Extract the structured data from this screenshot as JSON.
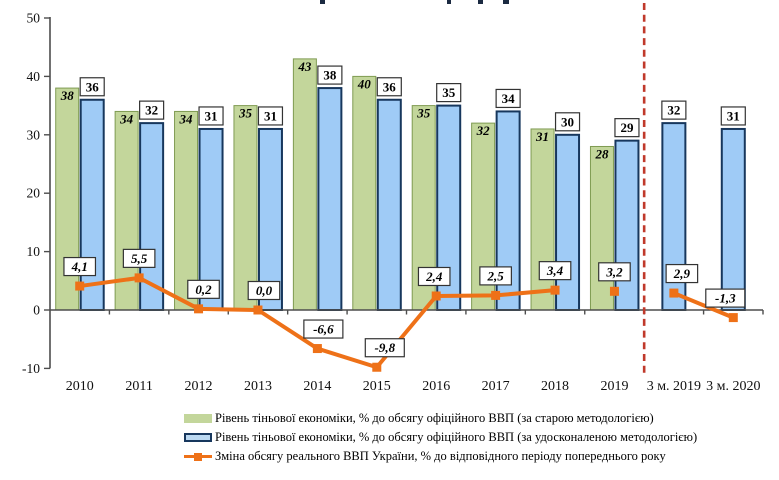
{
  "chart_data": {
    "type": "bar+line",
    "categories": [
      "2010",
      "2011",
      "2012",
      "2013",
      "2014",
      "2015",
      "2016",
      "2017",
      "2018",
      "2019",
      "3 м. 2019",
      "3 м. 2020"
    ],
    "ylim": [
      -10,
      50
    ],
    "yticks": [
      -10,
      0,
      10,
      20,
      30,
      40,
      50
    ],
    "grid": "off",
    "legend_position": "bottom",
    "series": [
      {
        "name": "Рівень тіньової економіки, % до обсягу офіційного ВВП (за старою методологією)",
        "type": "bar",
        "color": "#c3d69b",
        "border_color": "#7f9b52",
        "values": [
          38,
          34,
          34,
          35,
          43,
          40,
          35,
          32,
          31,
          28,
          null,
          null
        ],
        "value_labels": [
          "38",
          "34",
          "34",
          "35",
          "43",
          "40",
          "35",
          "32",
          "31",
          "28",
          "",
          ""
        ]
      },
      {
        "name": "Рівень тіньової економіки, % до обсягу офіційного ВВП (за удосконаленою методологією)",
        "type": "bar",
        "color": "#9fcbf6",
        "border_color": "#17375d",
        "values": [
          36,
          32,
          31,
          31,
          38,
          36,
          35,
          34,
          30,
          29,
          32,
          31
        ],
        "value_labels": [
          "36",
          "32",
          "31",
          "31",
          "38",
          "36",
          "35",
          "34",
          "30",
          "29",
          "32",
          "31"
        ]
      },
      {
        "name": "Зміна обсягу реального ВВП України, % до відповідного періоду попереднього року",
        "type": "line",
        "color": "#ee7118",
        "values": [
          4.1,
          5.5,
          0.2,
          0.0,
          -6.6,
          -9.8,
          2.4,
          2.5,
          3.4,
          3.2,
          2.9,
          -1.3
        ],
        "value_labels": [
          "4,1",
          "5,5",
          "0,2",
          "0,0",
          "-6,6",
          "-9,8",
          "2,4",
          "2,5",
          "3,4",
          "3,2",
          "2,9",
          "-1,3"
        ],
        "segments": [
          [
            0,
            8
          ],
          [
            10,
            11
          ]
        ],
        "isolated_points": [
          9
        ]
      }
    ],
    "separator": {
      "after_category": "2019",
      "color": "#c0392b",
      "style": "dashed"
    },
    "colors": {
      "axis": "#4d4d4d",
      "label_box_bg": "#ffffff",
      "label_box_border": "#333333"
    }
  }
}
